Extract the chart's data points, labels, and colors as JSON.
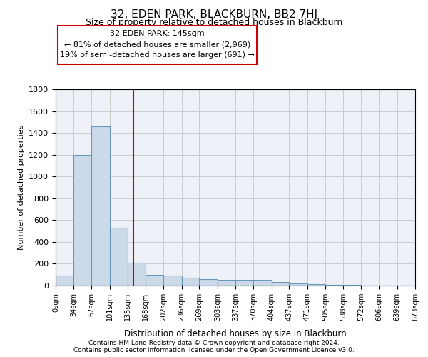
{
  "title": "32, EDEN PARK, BLACKBURN, BB2 7HJ",
  "subtitle": "Size of property relative to detached houses in Blackburn",
  "xlabel": "Distribution of detached houses by size in Blackburn",
  "ylabel": "Number of detached properties",
  "bar_color": "#ccd9e8",
  "bar_edge_color": "#6699bb",
  "grid_color": "#cccccc",
  "background_color": "#eef2f8",
  "annotation_box_color": "#cc0000",
  "vline_color": "#cc0000",
  "property_size": 145,
  "annotation_text_line1": "32 EDEN PARK: 145sqm",
  "annotation_text_line2": "← 81% of detached houses are smaller (2,969)",
  "annotation_text_line3": "19% of semi-detached houses are larger (691) →",
  "bin_edges": [
    0,
    34,
    67,
    101,
    135,
    168,
    202,
    236,
    269,
    303,
    337,
    370,
    404,
    437,
    471,
    505,
    538,
    572,
    606,
    639,
    673
  ],
  "bin_counts": [
    90,
    1200,
    1460,
    530,
    210,
    100,
    90,
    70,
    60,
    55,
    50,
    50,
    30,
    20,
    12,
    8,
    5,
    3,
    2,
    2
  ],
  "ylim": [
    0,
    1800
  ],
  "yticks": [
    0,
    200,
    400,
    600,
    800,
    1000,
    1200,
    1400,
    1600,
    1800
  ],
  "footer_line1": "Contains HM Land Registry data © Crown copyright and database right 2024.",
  "footer_line2": "Contains public sector information licensed under the Open Government Licence v3.0."
}
